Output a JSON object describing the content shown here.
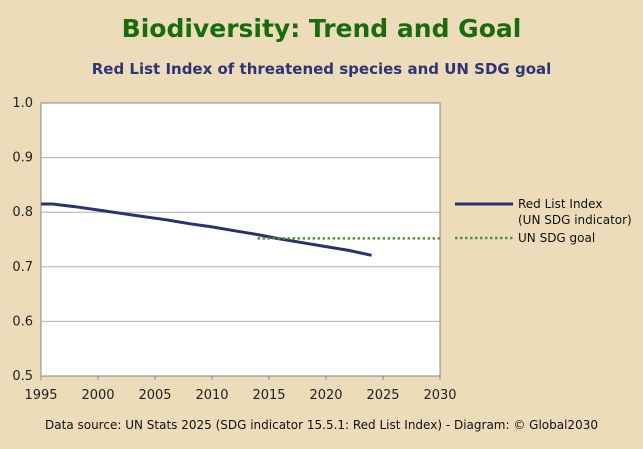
{
  "title": "Biodiversity: Trend and Goal",
  "subtitle": "Red List Index of threatened species and UN SDG goal",
  "source": "Data source: UN Stats 2025 (SDG indicator 15.5.1: Red List Index) - Diagram: © Global2030",
  "chart_data": {
    "type": "line",
    "xlim": [
      1995,
      2030
    ],
    "ylim": [
      0.5,
      1.0
    ],
    "x_ticks": [
      "1995",
      "2000",
      "2005",
      "2010",
      "2015",
      "2020",
      "2025",
      "2030"
    ],
    "y_ticks": [
      "0.5",
      "0.6",
      "0.7",
      "0.8",
      "0.9",
      "1.0"
    ],
    "grid": true,
    "legend_position": "right",
    "series": [
      {
        "name": "Red List Index",
        "name_line2": "(UN SDG indicator)",
        "style": "solid",
        "color": "#2a3070",
        "x": [
          1995,
          1996,
          1998,
          2000,
          2002,
          2004,
          2006,
          2008,
          2010,
          2012,
          2014,
          2016,
          2018,
          2020,
          2022,
          2024
        ],
        "y": [
          0.815,
          0.815,
          0.81,
          0.804,
          0.798,
          0.792,
          0.786,
          0.779,
          0.773,
          0.766,
          0.759,
          0.751,
          0.744,
          0.737,
          0.73,
          0.721
        ]
      },
      {
        "name": "UN SDG goal",
        "style": "dotted",
        "color": "#5e8c3c",
        "x": [
          2014,
          2030
        ],
        "y": [
          0.752,
          0.752
        ]
      }
    ]
  }
}
